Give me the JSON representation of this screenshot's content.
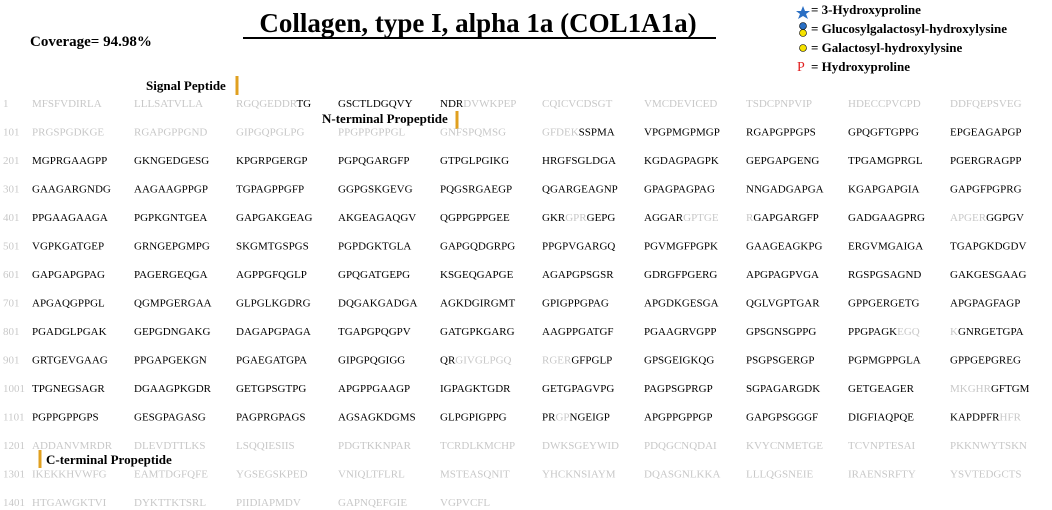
{
  "header": {
    "title": "Collagen, type I, alpha 1a (COL1A1a)",
    "coverage": "Coverage= 94.98%"
  },
  "legend": [
    "= 3-Hydroxyproline",
    "= Glucosylgalactosyl-hydroxylysine",
    "= Galactosyl-hydroxylysine",
    "= Hydroxyproline"
  ],
  "legend_symbol": "P",
  "annotations": {
    "signal": "Signal Peptide",
    "n_term": "N-terminal Propeptide",
    "c_term": "C-terminal Propeptide"
  },
  "rows": [
    {
      "number": "1",
      "blocks": [
        [
          {
            "text": "MFSFVDIRLA",
            "covered": false
          }
        ],
        [
          {
            "text": "LLLSATVLLA",
            "covered": false
          }
        ],
        [
          {
            "text": "RGQGEDDR",
            "covered": false
          },
          {
            "text": "TG",
            "covered": true
          }
        ],
        "GSCTLDGQVY",
        [
          {
            "text": "NDR",
            "covered": true
          },
          {
            "text": "DVWKPEP",
            "covered": false
          }
        ],
        [
          {
            "text": "CQICVCDSGT",
            "covered": false
          }
        ],
        [
          {
            "text": "VMCDEVICED",
            "covered": false
          }
        ],
        [
          {
            "text": "TSDCPNPVIP",
            "covered": false
          }
        ],
        [
          {
            "text": "HDECCPVCPD",
            "covered": false
          }
        ],
        [
          {
            "text": "DDFQEPSVEG",
            "covered": false
          }
        ]
      ]
    },
    {
      "number": "101",
      "blocks": [
        [
          {
            "text": "PRGSPGDKGE",
            "covered": false
          }
        ],
        [
          {
            "text": "RGAPGPPGND",
            "covered": false
          }
        ],
        [
          {
            "text": "GIPGQPGLPG",
            "covered": false
          }
        ],
        [
          {
            "text": "PPGPPGPPGL",
            "covered": false
          }
        ],
        [
          {
            "text": "GNFSPQMSG",
            "covered": false
          }
        ],
        [
          {
            "text": "GFDEK",
            "covered": false
          },
          {
            "text": "SSPMA",
            "covered": true
          }
        ],
        "VPGPMGPMGP",
        "RGAPGPPGPS",
        "GPQGFTGPPG",
        "EPGEAGAPGP"
      ]
    },
    {
      "number": "201",
      "blocks": [
        "MGPRGAAGPP",
        "GKNGEDGESG",
        "KPGRPGERGP",
        "PGPQGARGFP",
        "GTPGLPGIKG",
        "HRGFSGLDGA",
        "KGDAGPAGPK",
        "GEPGAPGENG",
        "TPGAMGPRGL",
        "PGERGRAGPP"
      ]
    },
    {
      "number": "301",
      "blocks": [
        "GAAGARGNDG",
        "AAGAAGPPGP",
        "TGPAGPPGFP",
        "GGPGSKGEVG",
        "PQGSRGAEGP",
        "QGARGEAGNP",
        "GPAGPAGPAG",
        "NNGADGAPGA",
        "KGAPGAPGIA",
        "GAPGFPGPRG"
      ]
    },
    {
      "number": "401",
      "blocks": [
        "PPGAAGAAGA",
        "PGPKGNTGEA",
        "GAPGAKGEAG",
        "AKGEAGAQGV",
        "QGPPGPPGEE",
        [
          {
            "text": "GKR",
            "covered": true
          },
          {
            "text": "GPR",
            "covered": false
          },
          {
            "text": "GEPG",
            "covered": true
          }
        ],
        [
          {
            "text": "AGGAR",
            "covered": true
          },
          {
            "text": "GPTGE",
            "covered": false
          }
        ],
        [
          {
            "text": "R",
            "covered": false
          },
          {
            "text": "GAPGARGFP",
            "covered": true
          }
        ],
        "GADGAAGPRG",
        [
          {
            "text": "APGER",
            "covered": false
          },
          {
            "text": "GGPGV",
            "covered": true
          }
        ]
      ]
    },
    {
      "number": "501",
      "blocks": [
        "VGPKGATGEP",
        "GRNGEPGMPG",
        "SKGMTGSPGS",
        "PGPDGKTGLA",
        "GAPGQDGRPG",
        "PPGPVGARGQ",
        "PGVMGFPGPK",
        "GAAGEAGKPG",
        "ERGVMGAIGA",
        "TGAPGKDGDV"
      ]
    },
    {
      "number": "601",
      "blocks": [
        "GAPGAPGPAG",
        "PAGERGEQGA",
        "AGPPGFQGLP",
        "GPQGATGEPG",
        "KSGEQGAPGE",
        "AGAPGPSGSR",
        "GDRGFPGERG",
        "APGPAGPVGA",
        "RGSPGSAGND",
        "GAKGESGAAG"
      ]
    },
    {
      "number": "701",
      "blocks": [
        "APGAQGPPGL",
        "QGMPGERGAA",
        "GLPGLKGDRG",
        "DQGAKGADGA",
        "AGKDGIRGMT",
        "GPIGPPGPAG",
        "APGDKGESGA",
        "QGLVGPTGAR",
        "GPPGERGETG",
        "APGPAGFAGP"
      ]
    },
    {
      "number": "801",
      "blocks": [
        "PGADGLPGAK",
        "GEPGDNGAKG",
        "DAGAPGPAGA",
        "TGAPGPQGPV",
        "GATGPKGARG",
        "AAGPPGATGF",
        "PGAAGRVGPP",
        "GPSGNSGPPG",
        [
          {
            "text": "PPGPAGK",
            "covered": true
          },
          {
            "text": "EGQ",
            "covered": false
          }
        ],
        [
          {
            "text": "K",
            "covered": false
          },
          {
            "text": "GNRGETGPA",
            "covered": true
          }
        ]
      ]
    },
    {
      "number": "901",
      "blocks": [
        "GRTGEVGAAG",
        "PPGAPGEKGN",
        "PGAEGATGPA",
        "GIPGPQGIGG",
        [
          {
            "text": "QR",
            "covered": true
          },
          {
            "text": "GIVGLPGQ",
            "covered": false
          }
        ],
        [
          {
            "text": "RGER",
            "covered": false
          },
          {
            "text": "GFPGLP",
            "covered": true
          }
        ],
        "GPSGEIGKQG",
        "PSGPSGERGP",
        "PGPMGPPGLA",
        "GPPGEPGREG"
      ]
    },
    {
      "number": "1001",
      "blocks": [
        "TPGNEGSAGR",
        "DGAAGPKGDR",
        "GETGPSGTPG",
        "APGPPGAAGP",
        "IGPAGKTGDR",
        "GETGPAGVPG",
        "PAGPSGPRGP",
        "SGPAGARGDK",
        "GETGEAGER",
        [
          {
            "text": "MKGHR",
            "covered": false
          },
          {
            "text": "GFTGM",
            "covered": true
          }
        ]
      ]
    },
    {
      "number": "1101",
      "blocks": [
        "PGPPGPPGPS",
        "GESGPAGASG",
        "PAGPRGPAGS",
        "AGSAGKDGMS",
        "GLPGPIGPPG",
        [
          {
            "text": "PR",
            "covered": true
          },
          {
            "text": "GP",
            "covered": false
          },
          {
            "text": "NGEIGP",
            "covered": true
          }
        ],
        "APGPPGPPGP",
        "GAPGPSGGGF",
        "DIGFIAQPQE",
        [
          {
            "text": "KAPDPFR",
            "covered": true
          },
          {
            "text": "HFR",
            "covered": false
          }
        ]
      ]
    },
    {
      "number": "1201",
      "covered": false,
      "blocks": [
        "ADDANVMRDR",
        "DLEVDTTLKS",
        "LSQQIESIIS",
        "PDGTKKNPAR",
        "TCRDLKMCHP",
        "DWKSGEYWID",
        "PDQGCNQDAI",
        "KVYCNMETGE",
        "TCVNPTESAI",
        "PKKNWYTSKN"
      ]
    },
    {
      "number": "1301",
      "covered": false,
      "blocks": [
        "IKEKKHVWFG",
        "EAMTDGFQFE",
        "YGSEGSKPED",
        "VNIQLTFLRL",
        "MSTEASQNIT",
        "YHCKNSIAYM",
        "DQASGNLKKA",
        "LLLQGSNEIE",
        "IRAENSRFTY",
        "YSVTEDGCTS"
      ]
    },
    {
      "number": "1401",
      "covered": false,
      "blocks": [
        "HTGAWGKTVI",
        "DYKTTKTSRL",
        "PIIDIAPMDV",
        "GAPNQEFGIE",
        "VGPVCFL"
      ]
    }
  ]
}
